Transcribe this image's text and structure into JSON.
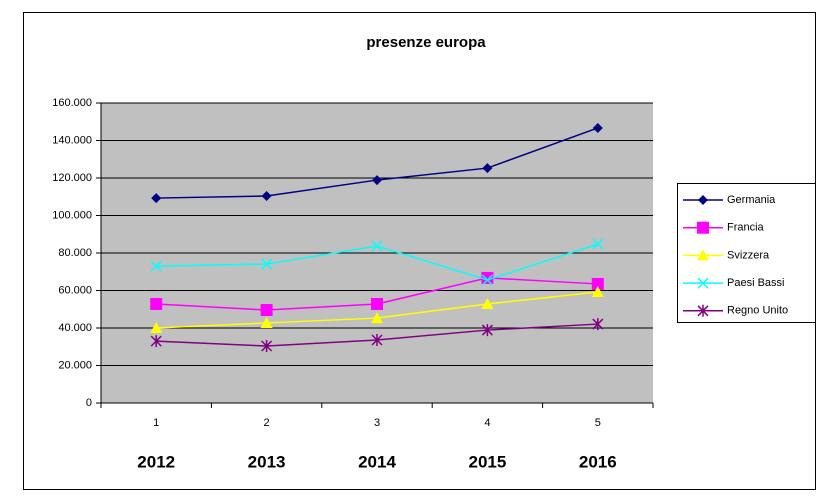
{
  "chart_data": {
    "type": "line",
    "title": "presenze europa",
    "categories": [
      "1",
      "2",
      "3",
      "4",
      "5"
    ],
    "year_labels": [
      "2012",
      "2013",
      "2014",
      "2015",
      "2016"
    ],
    "ylim": [
      0,
      160000
    ],
    "yticks": [
      0,
      {
        "value": 20000,
        "label": "20.000"
      },
      {
        "value": 40000,
        "label": "40.000"
      },
      {
        "value": 60000,
        "label": "60.000"
      },
      {
        "value": 80000,
        "label": "80.000"
      },
      {
        "value": 100000,
        "label": "100.000"
      },
      {
        "value": 120000,
        "label": "120.000"
      },
      {
        "value": 140000,
        "label": "140.000"
      },
      {
        "value": 160000,
        "label": "160.000"
      }
    ],
    "grid": true,
    "legend": "right",
    "series": [
      {
        "name": "Germania",
        "color": "#000080",
        "marker": "diamond",
        "values": [
          109300,
          110400,
          118900,
          125300,
          146700
        ]
      },
      {
        "name": "Francia",
        "color": "#ff00ff",
        "marker": "square",
        "values": [
          52800,
          49600,
          52800,
          66700,
          63500
        ]
      },
      {
        "name": "Svizzera",
        "color": "#ffff00",
        "marker": "triangle",
        "values": [
          40000,
          42700,
          45300,
          52800,
          59200
        ]
      },
      {
        "name": "Paesi Bassi",
        "color": "#00ffff",
        "marker": "x",
        "values": [
          73000,
          74100,
          83700,
          65600,
          84800
        ]
      },
      {
        "name": "Regno Unito",
        "color": "#800080",
        "marker": "star",
        "values": [
          33000,
          30400,
          33600,
          38900,
          42100
        ]
      }
    ]
  }
}
